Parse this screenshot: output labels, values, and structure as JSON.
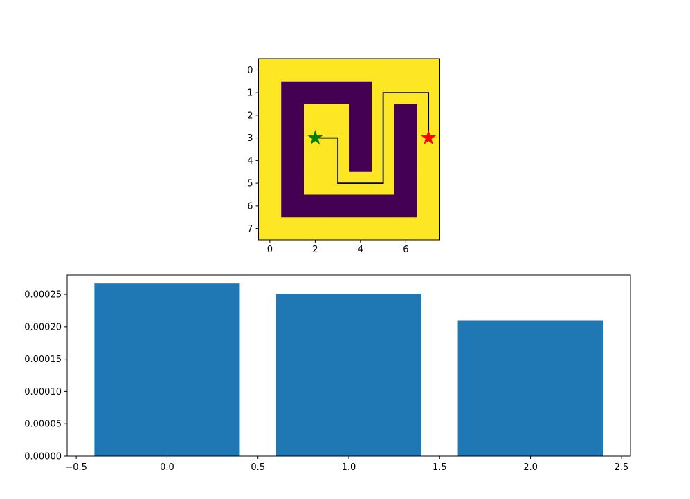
{
  "chart_data": [
    {
      "type": "heatmap",
      "grid": [
        [
          0,
          0,
          0,
          0,
          0,
          0,
          0,
          0
        ],
        [
          0,
          1,
          1,
          1,
          1,
          0,
          0,
          0
        ],
        [
          0,
          1,
          0,
          0,
          1,
          0,
          1,
          0
        ],
        [
          0,
          1,
          0,
          0,
          1,
          0,
          1,
          0
        ],
        [
          0,
          1,
          0,
          0,
          1,
          0,
          1,
          0
        ],
        [
          0,
          1,
          0,
          0,
          0,
          0,
          1,
          0
        ],
        [
          0,
          1,
          1,
          1,
          1,
          1,
          1,
          0
        ],
        [
          0,
          0,
          0,
          0,
          0,
          0,
          0,
          0
        ]
      ],
      "cell_colors": [
        "#fde725",
        "#440154"
      ],
      "x_ticks": [
        0,
        2,
        4,
        6
      ],
      "x_tick_labels": [
        "0",
        "2",
        "4",
        "6"
      ],
      "y_ticks": [
        0,
        1,
        2,
        3,
        4,
        5,
        6,
        7
      ],
      "y_tick_labels": [
        "0",
        "1",
        "2",
        "3",
        "4",
        "5",
        "6",
        "7"
      ],
      "path": [
        [
          2,
          3
        ],
        [
          3,
          3
        ],
        [
          3,
          5
        ],
        [
          5,
          5
        ],
        [
          5,
          1
        ],
        [
          7,
          1
        ],
        [
          7,
          3
        ]
      ],
      "path_color": "#000000",
      "start": {
        "x": 2,
        "y": 3,
        "color": "#008000",
        "marker": "star"
      },
      "goal": {
        "x": 7,
        "y": 3,
        "color": "#ff0000",
        "marker": "star"
      }
    },
    {
      "type": "bar",
      "x": [
        0,
        1,
        2
      ],
      "values": [
        0.000267,
        0.000251,
        0.00021
      ],
      "bar_color": "#1f77b4",
      "xlim": [
        -0.55,
        2.55
      ],
      "ylim": [
        0,
        0.00028
      ],
      "x_ticks": [
        -0.5,
        0.0,
        0.5,
        1.0,
        1.5,
        2.0,
        2.5
      ],
      "x_tick_labels": [
        "−0.5",
        "0.0",
        "0.5",
        "1.0",
        "1.5",
        "2.0",
        "2.5"
      ],
      "y_ticks": [
        0,
        5e-05,
        0.0001,
        0.00015,
        0.0002,
        0.00025
      ],
      "y_tick_labels": [
        "0.00000",
        "0.00005",
        "0.00010",
        "0.00015",
        "0.00020",
        "0.00025"
      ]
    }
  ]
}
